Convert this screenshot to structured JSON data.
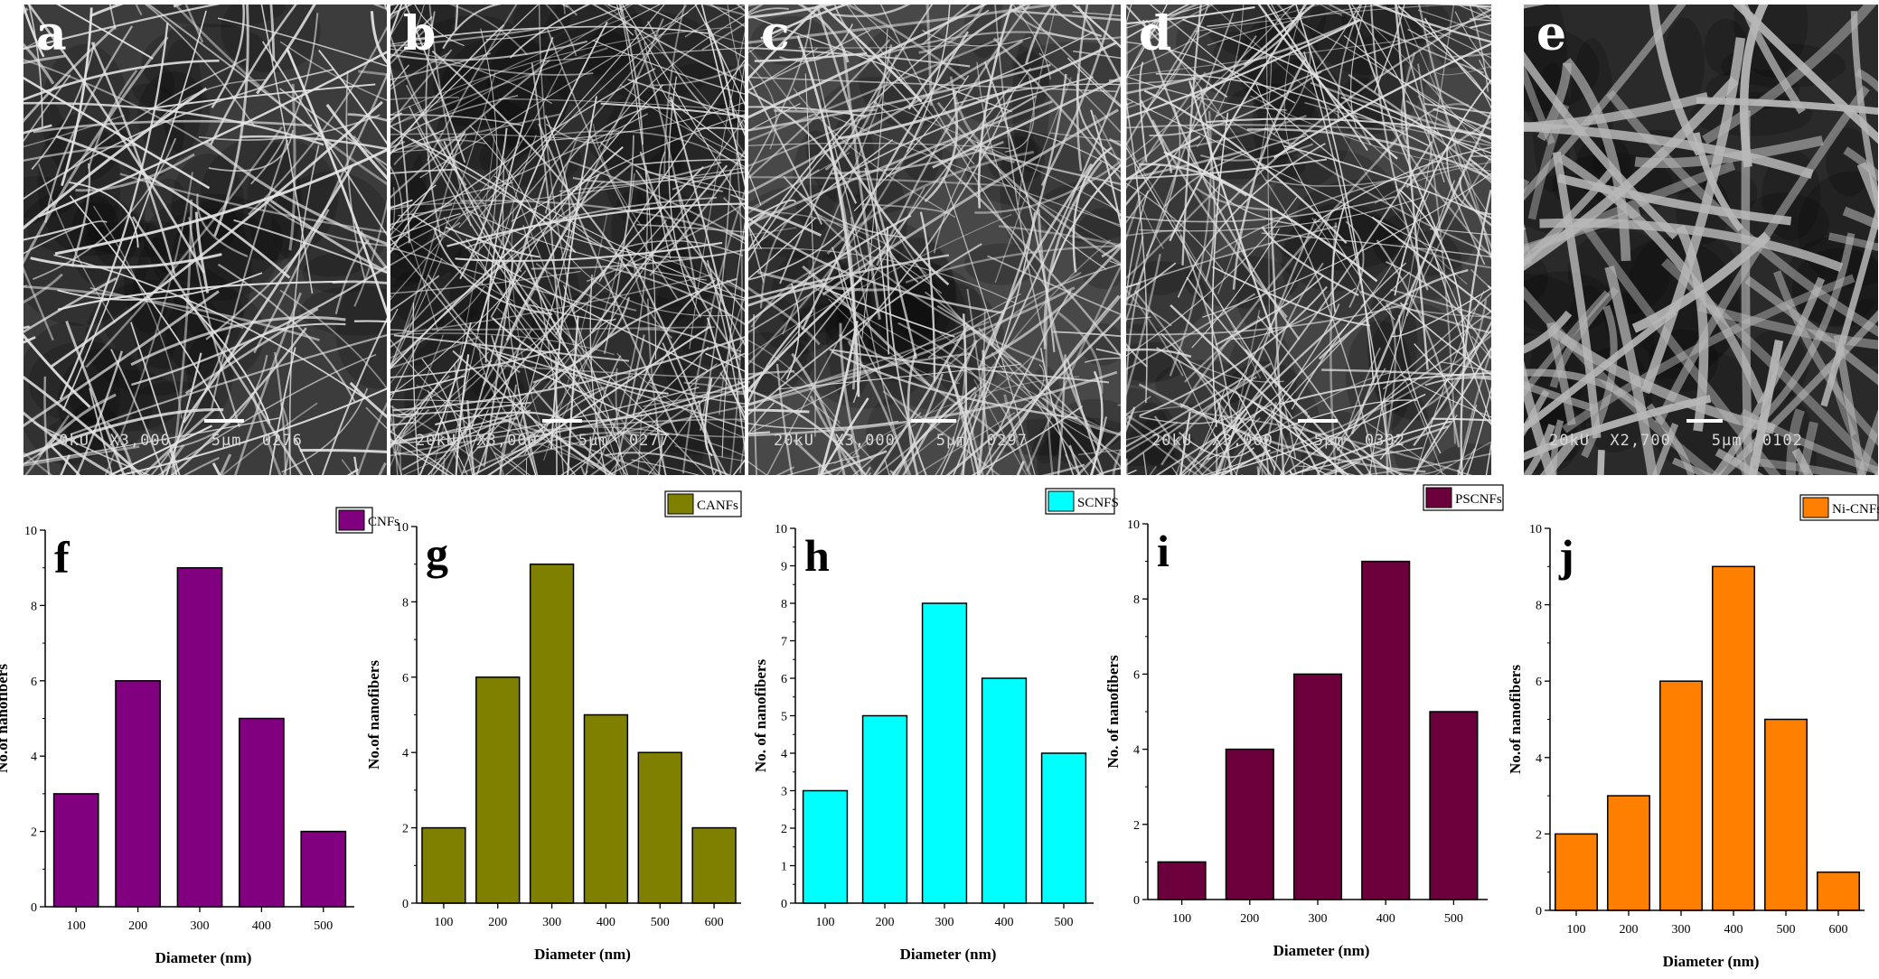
{
  "panels": [
    {
      "letter": "a",
      "info": "20kU  X3,000    5μm  0276",
      "dark": "#3c3c3c",
      "fiber": "#e6e6e6",
      "density": 260,
      "thick": [
        1.4,
        3.2
      ]
    },
    {
      "letter": "b",
      "info": "20kU  X3,000    5μm  0277",
      "dark": "#2f2f2f",
      "fiber": "#e2e2e2",
      "density": 520,
      "thick": [
        1,
        2.2
      ]
    },
    {
      "letter": "c",
      "info": "20kU  X3,000    5μm  0297",
      "dark": "#484848",
      "fiber": "#dedede",
      "density": 420,
      "thick": [
        1,
        3
      ]
    },
    {
      "letter": "d",
      "info": "20kU  X3,000    5μm  0302",
      "dark": "#454545",
      "fiber": "#e4e4e4",
      "density": 480,
      "thick": [
        1,
        2.6
      ]
    },
    {
      "letter": "e",
      "info": "20kU  X2,700    5μm  0102",
      "dark": "#2a2a2a",
      "fiber": "#b8b8b8",
      "density": 120,
      "thick": [
        7,
        11
      ]
    }
  ],
  "chart_data": [
    {
      "type": "bar",
      "label": "f",
      "legend": "CNFs",
      "color": "#800080",
      "categories": [
        "100",
        "200",
        "300",
        "400",
        "500"
      ],
      "values": [
        3,
        6,
        9,
        5,
        2
      ],
      "xlabel": "Diameter (nm)",
      "ylabel": "No.of nanofibers",
      "ylim": [
        0,
        10
      ],
      "yticks": [
        0,
        2,
        4,
        6,
        8,
        10
      ],
      "legend_position": "top-right"
    },
    {
      "type": "bar",
      "label": "g",
      "legend": "CANFs",
      "color": "#808000",
      "categories": [
        "100",
        "200",
        "300",
        "400",
        "500",
        "600"
      ],
      "values": [
        2,
        6,
        9,
        5,
        4,
        2
      ],
      "xlabel": "Diameter (nm)",
      "ylabel": "No.of nanofibers",
      "ylim": [
        0,
        10
      ],
      "yticks": [
        0,
        2,
        4,
        6,
        8,
        10
      ],
      "legend_position": "top-right"
    },
    {
      "type": "bar",
      "label": "h",
      "legend": "SCNFS",
      "color": "#00FFFF",
      "categories": [
        "100",
        "200",
        "300",
        "400",
        "500"
      ],
      "values": [
        3,
        5,
        8,
        6,
        4
      ],
      "xlabel": "Diameter (nm)",
      "ylabel": "No. of nanofibers",
      "ylim": [
        0,
        10
      ],
      "yticks": [
        0,
        1,
        2,
        3,
        4,
        5,
        6,
        7,
        8,
        9,
        10
      ],
      "legend_position": "top-right"
    },
    {
      "type": "bar",
      "label": "i",
      "legend": "PSCNFs",
      "color": "#6B003C",
      "categories": [
        "100",
        "200",
        "300",
        "400",
        "500"
      ],
      "values": [
        1,
        4,
        6,
        9,
        5
      ],
      "xlabel": "Diameter (nm)",
      "ylabel": "No. of nanofibers",
      "ylim": [
        0,
        10
      ],
      "yticks": [
        0,
        2,
        4,
        6,
        8,
        10
      ],
      "legend_position": "top-right"
    },
    {
      "type": "bar",
      "label": "j",
      "legend": "Ni-CNFs",
      "color": "#FF8000",
      "categories": [
        "100",
        "200",
        "300",
        "400",
        "500",
        "600"
      ],
      "values": [
        2,
        3,
        6,
        9,
        5,
        1
      ],
      "xlabel": "Diameter (nm)",
      "ylabel": "No.of nanofibers",
      "ylim": [
        0,
        10
      ],
      "yticks": [
        0,
        2,
        4,
        6,
        8,
        10
      ],
      "legend_position": "top-right"
    }
  ]
}
